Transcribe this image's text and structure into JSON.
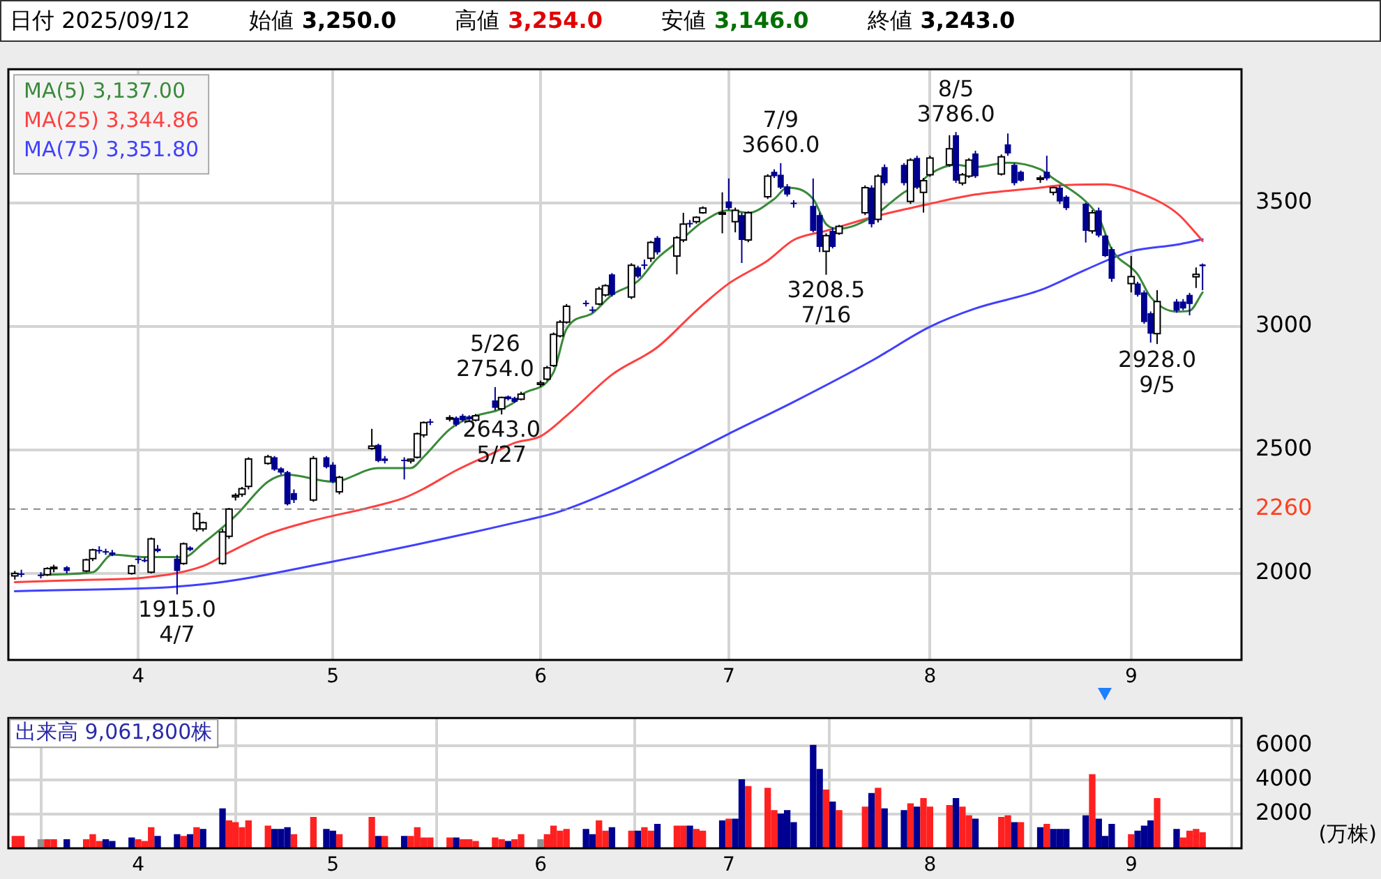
{
  "chart_data": [
    {
      "type": "candlestick",
      "title": "日付 2025/09/12",
      "x": [
        "2025-03-13",
        "2025-03-14",
        "2025-03-17",
        "2025-03-18",
        "2025-03-19",
        "2025-03-21",
        "2025-03-24",
        "2025-03-25",
        "2025-03-26",
        "2025-03-27",
        "2025-03-28",
        "2025-03-31",
        "2025-04-01",
        "2025-04-02",
        "2025-04-03",
        "2025-04-04",
        "2025-04-07",
        "2025-04-08",
        "2025-04-09",
        "2025-04-10",
        "2025-04-11",
        "2025-04-14",
        "2025-04-15",
        "2025-04-16",
        "2025-04-17",
        "2025-04-18",
        "2025-04-21",
        "2025-04-22",
        "2025-04-23",
        "2025-04-24",
        "2025-04-25",
        "2025-04-28",
        "2025-04-30",
        "2025-05-01",
        "2025-05-02",
        "2025-05-07",
        "2025-05-08",
        "2025-05-09",
        "2025-05-12",
        "2025-05-13",
        "2025-05-14",
        "2025-05-15",
        "2025-05-16",
        "2025-05-19",
        "2025-05-20",
        "2025-05-21",
        "2025-05-22",
        "2025-05-23",
        "2025-05-26",
        "2025-05-27",
        "2025-05-28",
        "2025-05-29",
        "2025-05-30",
        "2025-06-02",
        "2025-06-03",
        "2025-06-04",
        "2025-06-05",
        "2025-06-06",
        "2025-06-09",
        "2025-06-10",
        "2025-06-11",
        "2025-06-12",
        "2025-06-13",
        "2025-06-16",
        "2025-06-17",
        "2025-06-18",
        "2025-06-19",
        "2025-06-20",
        "2025-06-23",
        "2025-06-24",
        "2025-06-25",
        "2025-06-26",
        "2025-06-27",
        "2025-06-30",
        "2025-07-01",
        "2025-07-02",
        "2025-07-03",
        "2025-07-04",
        "2025-07-07",
        "2025-07-08",
        "2025-07-09",
        "2025-07-10",
        "2025-07-11",
        "2025-07-14",
        "2025-07-15",
        "2025-07-16",
        "2025-07-17",
        "2025-07-18",
        "2025-07-22",
        "2025-07-23",
        "2025-07-24",
        "2025-07-25",
        "2025-07-28",
        "2025-07-29",
        "2025-07-30",
        "2025-07-31",
        "2025-08-01",
        "2025-08-04",
        "2025-08-05",
        "2025-08-06",
        "2025-08-07",
        "2025-08-08",
        "2025-08-12",
        "2025-08-13",
        "2025-08-14",
        "2025-08-15",
        "2025-08-18",
        "2025-08-19",
        "2025-08-20",
        "2025-08-21",
        "2025-08-22",
        "2025-08-25",
        "2025-08-26",
        "2025-08-27",
        "2025-08-28",
        "2025-08-29",
        "2025-09-01",
        "2025-09-02",
        "2025-09-03",
        "2025-09-04",
        "2025-09-05",
        "2025-09-08",
        "2025-09-09",
        "2025-09-10",
        "2025-09-11",
        "2025-09-12"
      ],
      "ohlc": [
        [
          1990,
          2010,
          1975,
          2000
        ],
        [
          2000,
          2015,
          1985,
          1995
        ],
        [
          1995,
          2005,
          1980,
          1995
        ],
        [
          1995,
          2025,
          1990,
          2020
        ],
        [
          2020,
          2035,
          2005,
          2025
        ],
        [
          2025,
          2030,
          2000,
          2010
        ],
        [
          2010,
          2060,
          2005,
          2055
        ],
        [
          2060,
          2100,
          2050,
          2095
        ],
        [
          2095,
          2110,
          2080,
          2090
        ],
        [
          2090,
          2100,
          2075,
          2085
        ],
        [
          2085,
          2095,
          2070,
          2075
        ],
        [
          2000,
          2035,
          1995,
          2030
        ],
        [
          2060,
          2070,
          2040,
          2055
        ],
        [
          2055,
          2065,
          2045,
          2050
        ],
        [
          2005,
          2145,
          2000,
          2140
        ],
        [
          2100,
          2115,
          2085,
          2090
        ],
        [
          2060,
          2075,
          1915,
          2010
        ],
        [
          2040,
          2125,
          2035,
          2120
        ],
        [
          2105,
          2110,
          2090,
          2095
        ],
        [
          2180,
          2250,
          2170,
          2242
        ],
        [
          2180,
          2210,
          2170,
          2205
        ],
        [
          2040,
          2180,
          2035,
          2168
        ],
        [
          2150,
          2265,
          2140,
          2260
        ],
        [
          2310,
          2325,
          2295,
          2316
        ],
        [
          2320,
          2350,
          2310,
          2343
        ],
        [
          2352,
          2470,
          2340,
          2463
        ],
        [
          2445,
          2480,
          2440,
          2472
        ],
        [
          2470,
          2475,
          2415,
          2420
        ],
        [
          2425,
          2430,
          2400,
          2408
        ],
        [
          2410,
          2415,
          2275,
          2280
        ],
        [
          2325,
          2340,
          2285,
          2297
        ],
        [
          2297,
          2475,
          2290,
          2465
        ],
        [
          2470,
          2475,
          2425,
          2430
        ],
        [
          2440,
          2450,
          2365,
          2371
        ],
        [
          2330,
          2395,
          2320,
          2389
        ],
        [
          2505,
          2585,
          2500,
          2515
        ],
        [
          2520,
          2525,
          2450,
          2455
        ],
        [
          2465,
          2475,
          2445,
          2455
        ],
        [
          2460,
          2470,
          2380,
          2455
        ],
        [
          2455,
          2465,
          2445,
          2462
        ],
        [
          2470,
          2570,
          2465,
          2565
        ],
        [
          2560,
          2615,
          2550,
          2610
        ],
        [
          2615,
          2625,
          2600,
          2612
        ],
        [
          2628,
          2640,
          2615,
          2630
        ],
        [
          2630,
          2635,
          2595,
          2602
        ],
        [
          2638,
          2645,
          2615,
          2620
        ],
        [
          2635,
          2640,
          2615,
          2624
        ],
        [
          2620,
          2645,
          2615,
          2638
        ],
        [
          2700,
          2754,
          2660,
          2670
        ],
        [
          2666,
          2715,
          2643,
          2712
        ],
        [
          2716,
          2720,
          2700,
          2705
        ],
        [
          2710,
          2715,
          2690,
          2694
        ],
        [
          2705,
          2735,
          2700,
          2725
        ],
        [
          2765,
          2780,
          2755,
          2771
        ],
        [
          2786,
          2840,
          2780,
          2832
        ],
        [
          2841,
          2975,
          2835,
          2967
        ],
        [
          2961,
          3025,
          2955,
          3017
        ],
        [
          3017,
          3090,
          3010,
          3081
        ],
        [
          3095,
          3105,
          3080,
          3090
        ],
        [
          3068,
          3080,
          3055,
          3063
        ],
        [
          3090,
          3160,
          3085,
          3151
        ],
        [
          3127,
          3170,
          3120,
          3164
        ],
        [
          3210,
          3215,
          3120,
          3127
        ],
        [
          3118,
          3255,
          3110,
          3247
        ],
        [
          3238,
          3245,
          3195,
          3201
        ],
        [
          3250,
          3270,
          3230,
          3247
        ],
        [
          3275,
          3345,
          3260,
          3339
        ],
        [
          3358,
          3365,
          3290,
          3299
        ],
        [
          3284,
          3365,
          3210,
          3358
        ],
        [
          3349,
          3459,
          3340,
          3413
        ],
        [
          3418,
          3430,
          3400,
          3413
        ],
        [
          3423,
          3445,
          3415,
          3441
        ],
        [
          3459,
          3485,
          3455,
          3478
        ],
        [
          3455,
          3542,
          3376,
          3459
        ],
        [
          3505,
          3598,
          3470,
          3478
        ],
        [
          3423,
          3480,
          3380,
          3469
        ],
        [
          3450,
          3460,
          3256,
          3349
        ],
        [
          3349,
          3465,
          3340,
          3459
        ],
        [
          3524,
          3615,
          3515,
          3607
        ],
        [
          3625,
          3635,
          3600,
          3607
        ],
        [
          3613,
          3660,
          3555,
          3561
        ],
        [
          3566,
          3575,
          3525,
          3533
        ],
        [
          3500,
          3510,
          3480,
          3496
        ],
        [
          3487,
          3598,
          3380,
          3386
        ],
        [
          3450,
          3460,
          3300,
          3321
        ],
        [
          3303,
          3376,
          3208.5,
          3367
        ],
        [
          3386,
          3400,
          3315,
          3321
        ],
        [
          3376,
          3410,
          3370,
          3404
        ],
        [
          3459,
          3570,
          3450,
          3561
        ],
        [
          3561,
          3570,
          3400,
          3413
        ],
        [
          3432,
          3615,
          3420,
          3607
        ],
        [
          3644,
          3655,
          3570,
          3579
        ],
        [
          3653,
          3660,
          3570,
          3579
        ],
        [
          3505,
          3680,
          3495,
          3672
        ],
        [
          3681,
          3690,
          3555,
          3561
        ],
        [
          3542,
          3600,
          3460,
          3589
        ],
        [
          3613,
          3690,
          3605,
          3681
        ],
        [
          3653,
          3773,
          3645,
          3718
        ],
        [
          3773,
          3786,
          3580,
          3589
        ],
        [
          3579,
          3620,
          3570,
          3613
        ],
        [
          3607,
          3680,
          3600,
          3672
        ],
        [
          3699,
          3710,
          3600,
          3607
        ],
        [
          3616,
          3695,
          3610,
          3686
        ],
        [
          3736,
          3780,
          3690,
          3699
        ],
        [
          3653,
          3660,
          3570,
          3579
        ],
        [
          3625,
          3630,
          3585,
          3589
        ],
        [
          3598,
          3610,
          3580,
          3600
        ],
        [
          3625,
          3690,
          3590,
          3598
        ],
        [
          3542,
          3565,
          3530,
          3561
        ],
        [
          3561,
          3570,
          3495,
          3505
        ],
        [
          3524,
          3530,
          3470,
          3478
        ],
        [
          3496,
          3500,
          3339,
          3386
        ],
        [
          3386,
          3470,
          3375,
          3459
        ],
        [
          3469,
          3480,
          3360,
          3367
        ],
        [
          3367,
          3370,
          3280,
          3284
        ],
        [
          3312,
          3320,
          3180,
          3192
        ],
        [
          3173,
          3284,
          3137,
          3201
        ],
        [
          3173,
          3180,
          3120,
          3127
        ],
        [
          3137,
          3145,
          3010,
          3017
        ],
        [
          3053,
          3060,
          2934,
          2970
        ],
        [
          2970,
          3146,
          2928,
          3100
        ],
        [
          3100,
          3110,
          3055,
          3063
        ],
        [
          3100,
          3110,
          3065,
          3072
        ],
        [
          3127,
          3135,
          3044,
          3090
        ],
        [
          3200,
          3238,
          3155,
          3210
        ],
        [
          3250,
          3254,
          3146,
          3243
        ]
      ],
      "series": [
        {
          "type": "line",
          "name": "MA(5) 3,137.00",
          "color": "#3a8a3a",
          "x": [
            "2025-03-17",
            "2025-03-25",
            "2025-03-28",
            "2025-04-02",
            "2025-04-08",
            "2025-04-11",
            "2025-04-16",
            "2025-04-21",
            "2025-04-24",
            "2025-05-01",
            "2025-05-08",
            "2025-05-13",
            "2025-05-15",
            "2025-05-19",
            "2025-05-22",
            "2025-05-27",
            "2025-05-29",
            "2025-05-30",
            "2025-06-04",
            "2025-06-06",
            "2025-06-10",
            "2025-06-13",
            "2025-06-17",
            "2025-06-20",
            "2025-06-24",
            "2025-06-27",
            "2025-07-01",
            "2025-07-04",
            "2025-07-08",
            "2025-07-10",
            "2025-07-14",
            "2025-07-16",
            "2025-07-18",
            "2025-07-23",
            "2025-07-28",
            "2025-07-30",
            "2025-08-01",
            "2025-08-05",
            "2025-08-08",
            "2025-08-13",
            "2025-08-18",
            "2025-08-20",
            "2025-08-25",
            "2025-08-27",
            "2025-08-29",
            "2025-09-02",
            "2025-09-04",
            "2025-09-08",
            "2025-09-10",
            "2025-09-12"
          ],
          "values": [
            1995,
            2005,
            2076,
            2066,
            2066,
            2122,
            2233,
            2371,
            2399,
            2371,
            2426,
            2426,
            2472,
            2583,
            2629,
            2666,
            2694,
            2721,
            2814,
            2989,
            3053,
            3127,
            3183,
            3275,
            3358,
            3423,
            3469,
            3459,
            3515,
            3561,
            3515,
            3413,
            3395,
            3441,
            3542,
            3570,
            3616,
            3653,
            3644,
            3662,
            3635,
            3598,
            3505,
            3441,
            3312,
            3210,
            3118,
            3059,
            3063,
            3137
          ]
        },
        {
          "type": "line",
          "name": "MA(25) 3,344.86",
          "color": "#ff4040",
          "x": [
            "2025-03-13",
            "2025-03-24",
            "2025-04-02",
            "2025-04-11",
            "2025-04-15",
            "2025-04-21",
            "2025-04-28",
            "2025-05-07",
            "2025-05-12",
            "2025-05-15",
            "2025-05-20",
            "2025-05-26",
            "2025-05-29",
            "2025-06-02",
            "2025-06-06",
            "2025-06-13",
            "2025-06-20",
            "2025-06-26",
            "2025-07-01",
            "2025-07-07",
            "2025-07-11",
            "2025-07-16",
            "2025-07-23",
            "2025-07-29",
            "2025-08-01",
            "2025-08-08",
            "2025-08-18",
            "2025-08-21",
            "2025-08-28",
            "2025-09-02",
            "2025-09-08",
            "2025-09-11",
            "2025-09-12"
          ],
          "values": [
            1965,
            1974,
            1983,
            2030,
            2085,
            2159,
            2214,
            2269,
            2306,
            2343,
            2417,
            2491,
            2528,
            2555,
            2638,
            2804,
            2915,
            3063,
            3173,
            3266,
            3349,
            3386,
            3441,
            3478,
            3496,
            3533,
            3561,
            3570,
            3574,
            3542,
            3459,
            3376,
            3344.86
          ]
        },
        {
          "type": "line",
          "name": "MA(75) 3,351.80",
          "color": "#4040ff",
          "x": [
            "2025-03-13",
            "2025-04-11",
            "2025-05-01",
            "2025-05-29",
            "2025-06-05",
            "2025-06-13",
            "2025-06-24",
            "2025-07-01",
            "2025-07-11",
            "2025-07-23",
            "2025-08-01",
            "2025-08-08",
            "2025-08-18",
            "2025-08-25",
            "2025-09-01",
            "2025-09-08",
            "2025-09-12"
          ],
          "values": [
            1928,
            1956,
            2048,
            2205,
            2251,
            2334,
            2472,
            2565,
            2694,
            2860,
            2998,
            3072,
            3146,
            3229,
            3303,
            3330,
            3351.8
          ]
        }
      ],
      "ylim": [
        1650,
        4040
      ],
      "yticks": [
        2000,
        2500,
        3000,
        3500
      ],
      "xticks": [
        {
          "value": "2025-04-01",
          "label": "4"
        },
        {
          "value": "2025-05-01",
          "label": "5"
        },
        {
          "value": "2025-06-02",
          "label": "6"
        },
        {
          "value": "2025-07-01",
          "label": "7"
        },
        {
          "value": "2025-08-01",
          "label": "8"
        },
        {
          "value": "2025-09-01",
          "label": "9"
        }
      ],
      "xlim": [
        "2025-03-12",
        "2025-09-18"
      ],
      "grid": true,
      "legend": "top left",
      "ref_lines": [
        {
          "axis": "y",
          "value": 2260,
          "label": "2260",
          "color": "#888888",
          "line_style": "dashed"
        }
      ],
      "annotations": [
        "始値 3,250.0",
        "高値 3,254.0",
        "安値 3,146.0",
        "終値 3,243.0",
        {
          "text": "2754.0",
          "x": "2025-05-26",
          "y": 2754
        },
        {
          "text": "5/26",
          "x": "2025-05-26",
          "y": 2754
        },
        {
          "text": "2643.0",
          "x": "2025-05-27",
          "y": 2643
        },
        {
          "text": "5/27",
          "x": "2025-05-27",
          "y": 2643
        },
        {
          "text": "3660.0",
          "x": "2025-07-09",
          "y": 3660
        },
        {
          "text": "7/9",
          "x": "2025-07-09",
          "y": 3660
        },
        {
          "text": "3208.5",
          "x": "2025-07-16",
          "y": 3208.5
        },
        {
          "text": "7/16",
          "x": "2025-07-16",
          "y": 3208.5
        },
        {
          "text": "3786.0",
          "x": "2025-08-05",
          "y": 3786
        },
        {
          "text": "8/5",
          "x": "2025-08-05",
          "y": 3786
        },
        {
          "text": "2928.0",
          "x": "2025-09-05",
          "y": 2928
        },
        {
          "text": "9/5",
          "x": "2025-09-05",
          "y": 2928
        },
        {
          "text": "1915.0",
          "x": "2025-04-07",
          "y": 1915
        },
        {
          "text": "4/7",
          "x": "2025-04-07",
          "y": 1915
        }
      ]
    },
    {
      "type": "bar",
      "title": "出来高 9,061,800株",
      "ylabel": "(万株)",
      "x": [
        "2025-03-13",
        "2025-03-14",
        "2025-03-17",
        "2025-03-18",
        "2025-03-19",
        "2025-03-21",
        "2025-03-24",
        "2025-03-25",
        "2025-03-26",
        "2025-03-27",
        "2025-03-28",
        "2025-03-31",
        "2025-04-01",
        "2025-04-02",
        "2025-04-03",
        "2025-04-04",
        "2025-04-07",
        "2025-04-08",
        "2025-04-09",
        "2025-04-10",
        "2025-04-11",
        "2025-04-14",
        "2025-04-15",
        "2025-04-16",
        "2025-04-17",
        "2025-04-18",
        "2025-04-21",
        "2025-04-22",
        "2025-04-23",
        "2025-04-24",
        "2025-04-25",
        "2025-04-28",
        "2025-04-30",
        "2025-05-01",
        "2025-05-02",
        "2025-05-07",
        "2025-05-08",
        "2025-05-09",
        "2025-05-12",
        "2025-05-13",
        "2025-05-14",
        "2025-05-15",
        "2025-05-16",
        "2025-05-19",
        "2025-05-20",
        "2025-05-21",
        "2025-05-22",
        "2025-05-23",
        "2025-05-26",
        "2025-05-27",
        "2025-05-28",
        "2025-05-29",
        "2025-05-30",
        "2025-06-02",
        "2025-06-03",
        "2025-06-04",
        "2025-06-05",
        "2025-06-06",
        "2025-06-09",
        "2025-06-10",
        "2025-06-11",
        "2025-06-12",
        "2025-06-13",
        "2025-06-16",
        "2025-06-17",
        "2025-06-18",
        "2025-06-19",
        "2025-06-20",
        "2025-06-23",
        "2025-06-24",
        "2025-06-25",
        "2025-06-26",
        "2025-06-27",
        "2025-06-30",
        "2025-07-01",
        "2025-07-02",
        "2025-07-03",
        "2025-07-04",
        "2025-07-07",
        "2025-07-08",
        "2025-07-09",
        "2025-07-10",
        "2025-07-11",
        "2025-07-14",
        "2025-07-15",
        "2025-07-16",
        "2025-07-17",
        "2025-07-18",
        "2025-07-22",
        "2025-07-23",
        "2025-07-24",
        "2025-07-25",
        "2025-07-28",
        "2025-07-29",
        "2025-07-30",
        "2025-07-31",
        "2025-08-01",
        "2025-08-04",
        "2025-08-05",
        "2025-08-06",
        "2025-08-07",
        "2025-08-08",
        "2025-08-12",
        "2025-08-13",
        "2025-08-14",
        "2025-08-15",
        "2025-08-18",
        "2025-08-19",
        "2025-08-20",
        "2025-08-21",
        "2025-08-22",
        "2025-08-25",
        "2025-08-26",
        "2025-08-27",
        "2025-08-28",
        "2025-08-29",
        "2025-09-01",
        "2025-09-02",
        "2025-09-03",
        "2025-09-04",
        "2025-09-05",
        "2025-09-08",
        "2025-09-09",
        "2025-09-10",
        "2025-09-11",
        "2025-09-12"
      ],
      "values": [
        700,
        700,
        500,
        500,
        500,
        500,
        500,
        800,
        400,
        500,
        400,
        600,
        500,
        400,
        1200,
        700,
        800,
        700,
        800,
        1200,
        1100,
        2300,
        1600,
        1500,
        1200,
        1600,
        1300,
        1100,
        1100,
        1200,
        800,
        1800,
        1100,
        1000,
        800,
        1800,
        700,
        700,
        700,
        700,
        1200,
        600,
        600,
        600,
        600,
        500,
        500,
        400,
        600,
        500,
        400,
        500,
        800,
        500,
        800,
        1300,
        1000,
        1100,
        1100,
        800,
        1600,
        1000,
        1200,
        1000,
        1000,
        1200,
        1000,
        1400,
        1300,
        1300,
        1300,
        1100,
        1000,
        1600,
        1700,
        1700,
        4000,
        3600,
        3500,
        2200,
        2000,
        2200,
        1500,
        6000,
        4600,
        3400,
        2700,
        2200,
        2400,
        3200,
        3500,
        2300,
        2200,
        2600,
        2400,
        2900,
        2400,
        2500,
        2900,
        2400,
        1900,
        1700,
        1800,
        1900,
        1500,
        1500,
        1200,
        1400,
        1100,
        1100,
        1100,
        1900,
        4300,
        1700,
        700,
        1400,
        800,
        1000,
        1300,
        1600,
        2900,
        1100,
        600,
        1000,
        1100,
        906.18
      ],
      "colors": [
        "#ff2020",
        "#ff2020",
        "#909090",
        "#ff2020",
        "#ff2020",
        "#000090",
        "#ff2020",
        "#ff2020",
        "#ff2020",
        "#000090",
        "#000090",
        "#000090",
        "#ff2020",
        "#ff2020",
        "#ff2020",
        "#000090",
        "#000090",
        "#ff2020",
        "#000090",
        "#ff2020",
        "#000090",
        "#000090",
        "#ff2020",
        "#ff2020",
        "#ff2020",
        "#ff2020",
        "#ff2020",
        "#000090",
        "#000090",
        "#000090",
        "#ff2020",
        "#ff2020",
        "#000090",
        "#000090",
        "#ff2020",
        "#ff2020",
        "#000090",
        "#ff2020",
        "#000090",
        "#ff2020",
        "#ff2020",
        "#ff2020",
        "#ff2020",
        "#ff2020",
        "#000090",
        "#ff2020",
        "#ff2020",
        "#ff2020",
        "#ff2020",
        "#ff2020",
        "#000090",
        "#ff2020",
        "#ff2020",
        "#909090",
        "#ff2020",
        "#ff2020",
        "#ff2020",
        "#ff2020",
        "#000090",
        "#000090",
        "#ff2020",
        "#ff2020",
        "#000090",
        "#ff2020",
        "#000090",
        "#ff2020",
        "#ff2020",
        "#000090",
        "#ff2020",
        "#ff2020",
        "#000090",
        "#ff2020",
        "#ff2020",
        "#000090",
        "#ff2020",
        "#000090",
        "#000090",
        "#ff2020",
        "#ff2020",
        "#ff2020",
        "#000090",
        "#000090",
        "#000090",
        "#000090",
        "#000090",
        "#ff2020",
        "#000090",
        "#ff2020",
        "#ff2020",
        "#000090",
        "#ff2020",
        "#000090",
        "#000090",
        "#ff2020",
        "#000090",
        "#ff2020",
        "#ff2020",
        "#ff2020",
        "#000090",
        "#ff2020",
        "#ff2020",
        "#000090",
        "#ff2020",
        "#ff2020",
        "#000090",
        "#ff2020",
        "#000090",
        "#ff2020",
        "#000090",
        "#000090",
        "#000090",
        "#000090",
        "#ff2020",
        "#000090",
        "#000090",
        "#000090",
        "#ff2020",
        "#000090",
        "#000090",
        "#000090",
        "#ff2020",
        "#000090",
        "#ff2020",
        "#ff2020",
        "#ff2020",
        "#ff2020"
      ],
      "ylim": [
        0,
        7600
      ],
      "yticks": [
        2000,
        4000,
        6000
      ],
      "xlim": [
        "2025-03-12",
        "2025-09-18"
      ],
      "xticks": [
        {
          "value": "2025-04-01",
          "label": "4"
        },
        {
          "value": "2025-05-01",
          "label": "5"
        },
        {
          "value": "2025-06-02",
          "label": "6"
        },
        {
          "value": "2025-07-01",
          "label": "7"
        },
        {
          "value": "2025-08-01",
          "label": "8"
        },
        {
          "value": "2025-09-01",
          "label": "9"
        }
      ],
      "grid": true
    }
  ]
}
